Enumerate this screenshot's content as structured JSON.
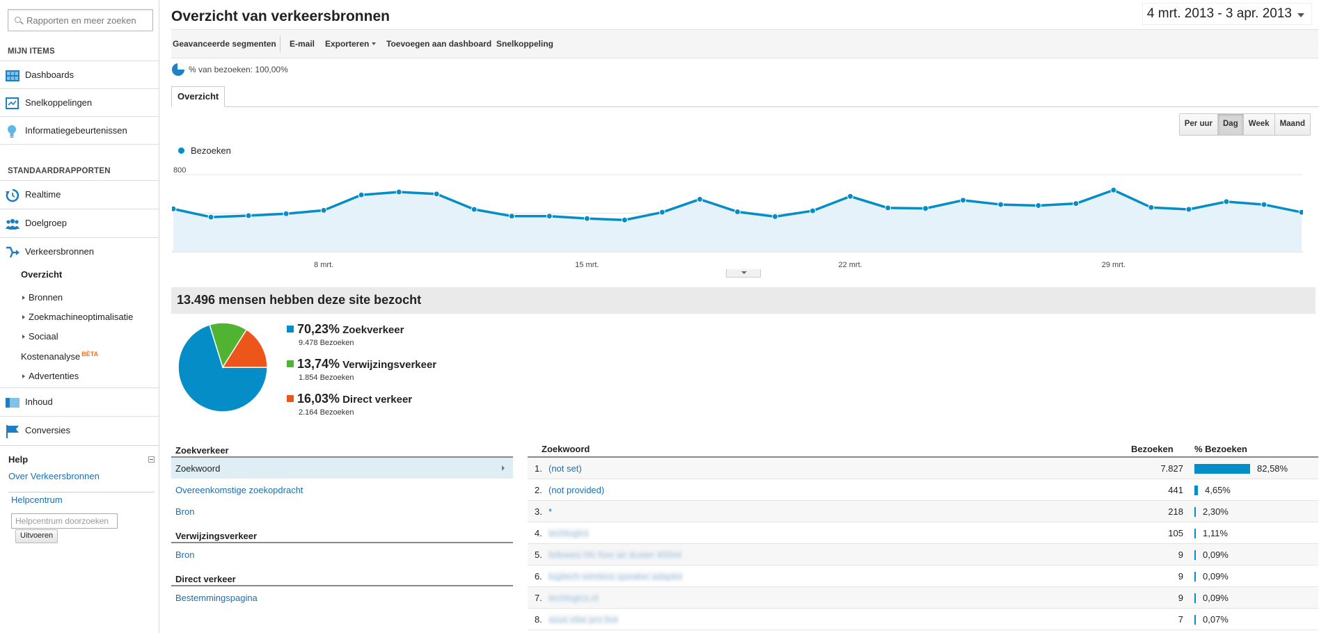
{
  "sidebar": {
    "search_placeholder": "Rapporten en meer zoeken",
    "my_items_heading": "MIJN ITEMS",
    "my_items": [
      {
        "label": "Dashboards",
        "icon": "dashboard-grid-icon"
      },
      {
        "label": "Snelkoppelingen",
        "icon": "shortcut-icon"
      },
      {
        "label": "Informatiegebeurtenissen",
        "icon": "lightbulb-icon"
      }
    ],
    "standard_heading": "STANDAARDRAPPORTEN",
    "standard_items": [
      {
        "label": "Realtime",
        "icon": "realtime-clock-icon"
      },
      {
        "label": "Doelgroep",
        "icon": "audience-people-icon"
      },
      {
        "label": "Verkeersbronnen",
        "icon": "traffic-arrows-icon"
      }
    ],
    "traffic_sub": {
      "overview": "Overzicht",
      "sources": "Bronnen",
      "seo": "Zoekmachineoptimalisatie",
      "social": "Sociaal",
      "cost": "Kostenanalyse",
      "beta": "BÈTA",
      "ads": "Advertenties"
    },
    "bottom_items": [
      {
        "label": "Inhoud",
        "icon": "content-icon"
      },
      {
        "label": "Conversies",
        "icon": "flag-icon"
      }
    ],
    "help": {
      "heading": "Help",
      "about_link": "Over Verkeersbronnen",
      "helpcenter_link": "Helpcentrum",
      "search_placeholder": "Helpcentrum doorzoeken",
      "go_button": "Uitvoeren"
    }
  },
  "header": {
    "title": "Overzicht van verkeersbronnen",
    "date_range": "4 mrt. 2013 - 3 apr. 2013"
  },
  "toolbar": {
    "advanced_segments": "Geavanceerde segmenten",
    "email": "E-mail",
    "export": "Exporteren",
    "add_dashboard": "Toevoegen aan dashboard",
    "shortcut": "Snelkoppeling"
  },
  "segment_pct": "% van bezoeken: 100,00%",
  "tab_overview": "Overzicht",
  "granularity": {
    "options": [
      "Per uur",
      "Dag",
      "Week",
      "Maand"
    ],
    "active": "Dag"
  },
  "chart_data": {
    "type": "area",
    "series": [
      {
        "name": "Bezoeken",
        "color": "#058dc7",
        "values": [
          445,
          360,
          375,
          395,
          430,
          590,
          620,
          600,
          440,
          370,
          370,
          345,
          330,
          410,
          545,
          415,
          365,
          425,
          575,
          455,
          450,
          535,
          490,
          480,
          500,
          640,
          460,
          440,
          520,
          490,
          410
        ]
      }
    ],
    "x_tick_labels": [
      "8 mrt.",
      "15 mrt.",
      "22 mrt.",
      "29 mrt."
    ],
    "x_tick_indices": [
      4,
      11,
      18,
      25
    ],
    "y_tick_labels": [
      "800",
      "400"
    ],
    "y_ticks": [
      800,
      400
    ],
    "ylim": [
      0,
      880
    ],
    "grid": true,
    "legend_position": "top-left"
  },
  "summary_title": "13.496 mensen hebben deze site bezocht",
  "pie": {
    "slices": [
      {
        "pct": "70,23%",
        "value": 70.23,
        "name": "Zoekverkeer",
        "visits": "9.478 Bezoeken",
        "color": "#058dc7"
      },
      {
        "pct": "13,74%",
        "value": 13.74,
        "name": "Verwijzingsverkeer",
        "visits": "1.854 Bezoeken",
        "color": "#50b432"
      },
      {
        "pct": "16,03%",
        "value": 16.03,
        "name": "Direct verkeer",
        "visits": "2.164 Bezoeken",
        "color": "#ed561b"
      }
    ]
  },
  "traffic_lists": {
    "search_heading": "Zoekverkeer",
    "search_items": [
      "Zoekwoord",
      "Overeenkomstige zoekopdracht",
      "Bron"
    ],
    "referral_heading": "Verwijzingsverkeer",
    "referral_items": [
      "Bron"
    ],
    "direct_heading": "Direct verkeer",
    "direct_items": [
      "Bestemmingspagina"
    ]
  },
  "keyword_table": {
    "headers": {
      "keyword": "Zoekwoord",
      "visits": "Bezoeken",
      "pct": "% Bezoeken"
    },
    "rows": [
      {
        "n": "1.",
        "keyword": "(not set)",
        "visits": "7.827",
        "pct": "82,58%",
        "fraction": 0.8258,
        "blurred": false
      },
      {
        "n": "2.",
        "keyword": "(not provided)",
        "visits": "441",
        "pct": "4,65%",
        "fraction": 0.0465,
        "blurred": false
      },
      {
        "n": "3.",
        "keyword": "*",
        "visits": "218",
        "pct": "2,30%",
        "fraction": 0.023,
        "blurred": false
      },
      {
        "n": "4.",
        "keyword": "techlogics",
        "visits": "105",
        "pct": "1,11%",
        "fraction": 0.0111,
        "blurred": true
      },
      {
        "n": "5.",
        "keyword": "fellowes hfc free air duster 400ml",
        "visits": "9",
        "pct": "0,09%",
        "fraction": 0.0009,
        "blurred": true
      },
      {
        "n": "6.",
        "keyword": "logitech wireless speaker adapter",
        "visits": "9",
        "pct": "0,09%",
        "fraction": 0.0009,
        "blurred": true
      },
      {
        "n": "7.",
        "keyword": "techlogics.nl",
        "visits": "9",
        "pct": "0,09%",
        "fraction": 0.0009,
        "blurred": true
      },
      {
        "n": "8.",
        "keyword": "asus vibe pro live",
        "visits": "7",
        "pct": "0,07%",
        "fraction": 0.0007,
        "blurred": true
      }
    ]
  }
}
